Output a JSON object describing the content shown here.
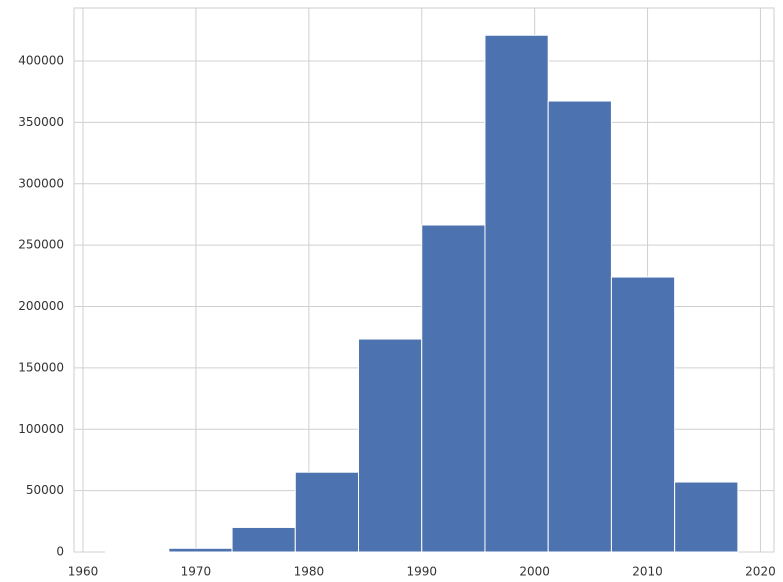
{
  "chart_data": {
    "type": "histogram",
    "bins": [
      1962,
      1967.6,
      1973.2,
      1978.8,
      1984.4,
      1990,
      1995.6,
      2001.2,
      2006.8,
      2012.4,
      2018
    ],
    "values": [
      300,
      3000,
      20000,
      65000,
      173500,
      266400,
      421000,
      367400,
      224000,
      57000
    ],
    "color": "#4c72b0",
    "xlim": [
      1959.2,
      2021.2
    ],
    "xticks": [
      1960,
      1970,
      1980,
      1990,
      2000,
      2010,
      2020
    ],
    "ylim": [
      0,
      443200
    ],
    "yticks": [
      0,
      50000,
      100000,
      150000,
      200000,
      250000,
      300000,
      350000,
      400000
    ],
    "grid": true
  }
}
